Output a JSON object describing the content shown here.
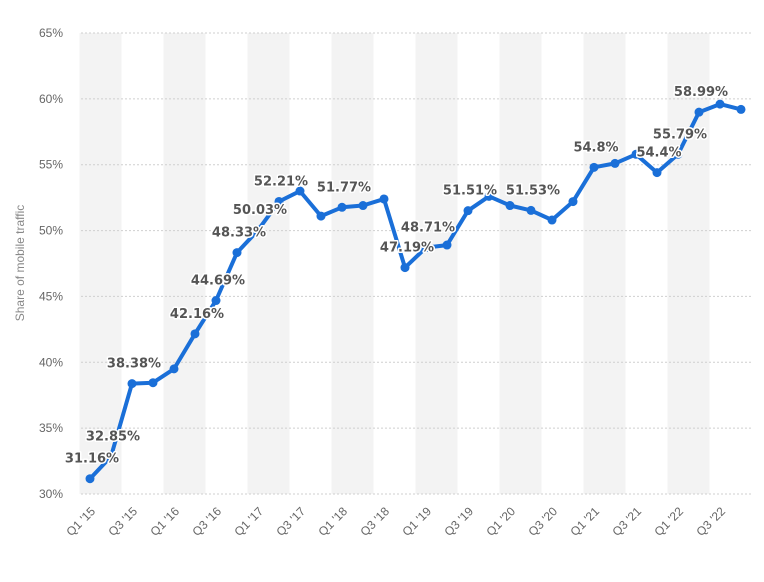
{
  "chart_data": {
    "type": "line",
    "ylabel": "Share of mobile traffic",
    "ylim": [
      30,
      65
    ],
    "y_ticks": [
      30,
      35,
      40,
      45,
      50,
      55,
      60,
      65
    ],
    "y_tick_labels": [
      "30%",
      "35%",
      "40%",
      "45%",
      "50%",
      "55%",
      "60%",
      "65%"
    ],
    "grid": true,
    "categories": [
      "Q1 '15",
      "Q2 '15",
      "Q3 '15",
      "Q4 '15",
      "Q1 '16",
      "Q2 '16",
      "Q3 '16",
      "Q4 '16",
      "Q1 '17",
      "Q2 '17",
      "Q3 '17",
      "Q4 '17",
      "Q1 '18",
      "Q2 '18",
      "Q3 '18",
      "Q4 '18",
      "Q1 '19",
      "Q2 '19",
      "Q3 '19",
      "Q4 '19",
      "Q1 '20",
      "Q2 '20",
      "Q3 '20",
      "Q4 '20",
      "Q1 '21",
      "Q2 '21",
      "Q3 '21",
      "Q4 '21",
      "Q1 '22",
      "Q2 '22",
      "Q3 '22",
      "Q4 '22"
    ],
    "x_tick_labels": [
      "Q1 '15",
      "Q3 '15",
      "Q1 '16",
      "Q3 '16",
      "Q1 '17",
      "Q3 '17",
      "Q1 '18",
      "Q3 '18",
      "Q1 '19",
      "Q3 '19",
      "Q1 '20",
      "Q3 '20",
      "Q1 '21",
      "Q3 '21",
      "Q1 '22",
      "Q3 '22"
    ],
    "series": [
      {
        "color": "#1a6fd8",
        "values": [
          31.16,
          32.85,
          38.38,
          38.45,
          39.5,
          42.16,
          44.69,
          48.33,
          50.03,
          52.21,
          53.0,
          51.1,
          51.77,
          51.9,
          52.4,
          47.19,
          48.71,
          48.9,
          51.51,
          52.6,
          51.9,
          51.53,
          50.8,
          52.2,
          54.8,
          55.1,
          55.79,
          54.4,
          55.79,
          58.99,
          59.6,
          59.2
        ]
      }
    ],
    "data_labels": [
      {
        "index": 0,
        "text": "31.16%"
      },
      {
        "index": 1,
        "text": "32.85%"
      },
      {
        "index": 2,
        "text": "38.38%"
      },
      {
        "index": 5,
        "text": "42.16%"
      },
      {
        "index": 6,
        "text": "44.69%"
      },
      {
        "index": 7,
        "text": "48.33%"
      },
      {
        "index": 8,
        "text": "50.03%"
      },
      {
        "index": 9,
        "text": "52.21%"
      },
      {
        "index": 12,
        "text": "51.77%"
      },
      {
        "index": 15,
        "text": "47.19%"
      },
      {
        "index": 16,
        "text": "48.71%"
      },
      {
        "index": 18,
        "text": "51.51%"
      },
      {
        "index": 21,
        "text": "51.53%"
      },
      {
        "index": 24,
        "text": "54.8%"
      },
      {
        "index": 27,
        "text": "54.4%"
      },
      {
        "index": 28,
        "text": "55.79%"
      },
      {
        "index": 29,
        "text": "58.99%"
      }
    ]
  }
}
